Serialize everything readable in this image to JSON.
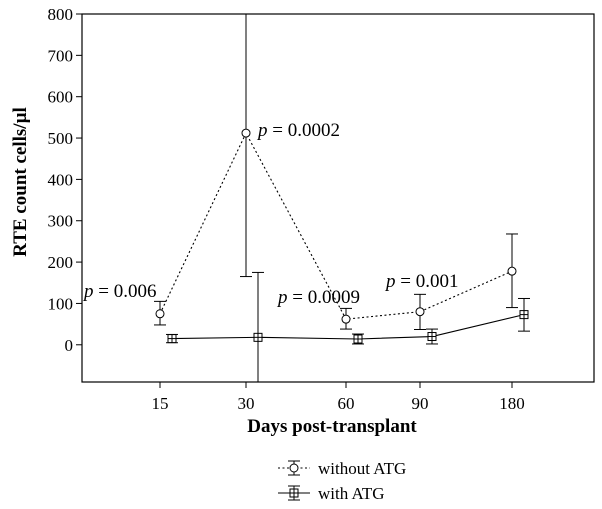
{
  "chart_data": {
    "type": "line",
    "title": "",
    "xlabel": "Days post-transplant",
    "ylabel": "RTE count cells/µl",
    "categories": [
      "15",
      "30",
      "60",
      "90",
      "180"
    ],
    "ylim": [
      -90,
      800
    ],
    "yticks": [
      0,
      100,
      200,
      300,
      400,
      500,
      600,
      700,
      800
    ],
    "series": [
      {
        "name": "without ATG",
        "line_style": "dotted",
        "marker": "circle",
        "color": "#000000",
        "values": [
          75,
          512,
          62,
          80,
          178
        ],
        "err_low": [
          48,
          165,
          38,
          37,
          90
        ],
        "err_high": [
          105,
          800,
          88,
          122,
          268
        ]
      },
      {
        "name": "with ATG",
        "line_style": "solid",
        "marker": "square-cross",
        "color": "#000000",
        "values": [
          15,
          18,
          14,
          20,
          73
        ],
        "err_low": [
          5,
          -90,
          2,
          2,
          33
        ],
        "err_high": [
          25,
          175,
          26,
          38,
          112
        ]
      }
    ],
    "annotations": [
      {
        "italic": "p",
        "text": " = 0.006"
      },
      {
        "italic": "p",
        "text": " = 0.0002"
      },
      {
        "italic": "p",
        "text": " = 0.0009"
      },
      {
        "italic": "p",
        "text": " = 0.001"
      }
    ],
    "legend_position": "bottom-center"
  }
}
